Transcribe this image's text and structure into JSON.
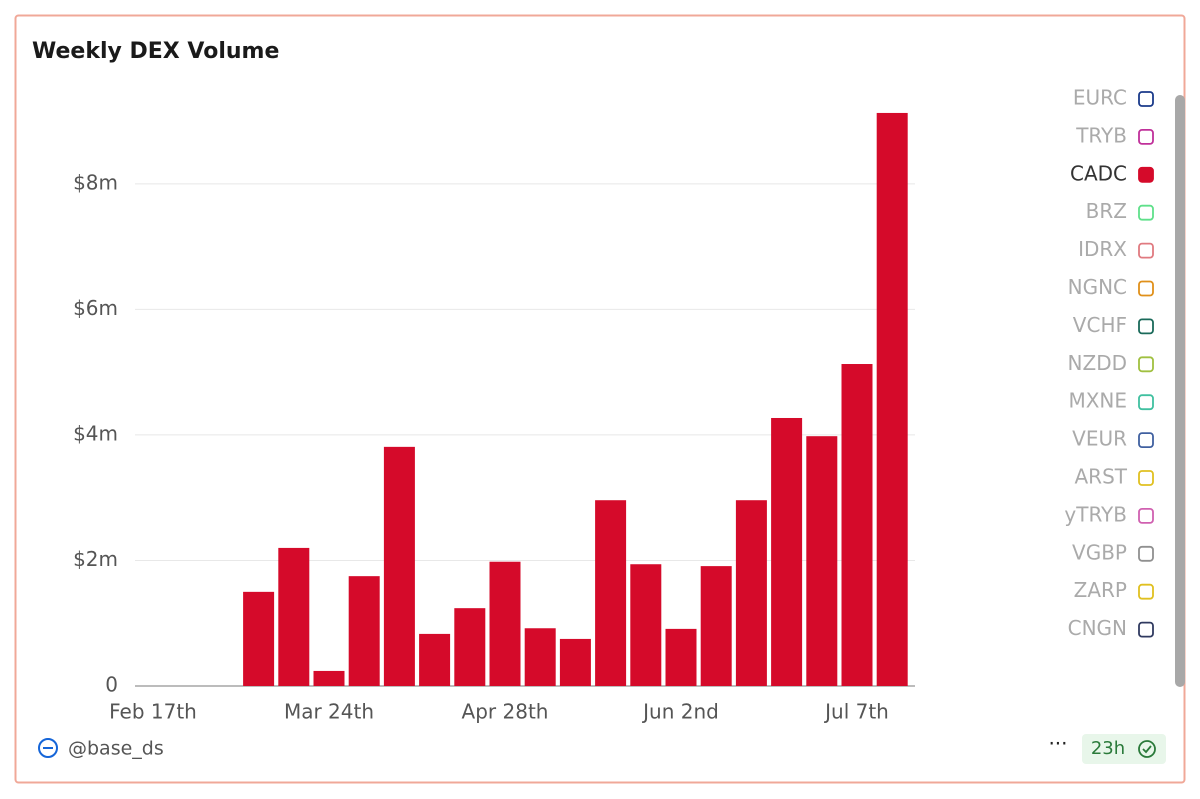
{
  "chart_data": {
    "type": "bar",
    "title": "Weekly DEX Volume",
    "categories": [
      "Feb 17th",
      null,
      null,
      null,
      null,
      "Mar 24th",
      null,
      null,
      null,
      null,
      "Apr 28th",
      null,
      null,
      null,
      null,
      "Jun 2nd",
      null,
      null,
      null,
      null,
      "Jul 7th",
      null
    ],
    "series": [
      {
        "name": "EURC",
        "color": "#1a3a8a",
        "visible": false
      },
      {
        "name": "TRYB",
        "color": "#c0309a",
        "visible": false
      },
      {
        "name": "CADC",
        "color": "#d50a2a",
        "visible": true,
        "values": [
          0,
          0,
          0,
          1500000,
          2200000,
          240000,
          1750000,
          3810000,
          830000,
          1240000,
          1980000,
          920000,
          750000,
          2960000,
          1940000,
          910000,
          1910000,
          2960000,
          4270000,
          3980000,
          5130000,
          9130000
        ]
      },
      {
        "name": "BRZ",
        "color": "#5fe08a",
        "visible": false
      },
      {
        "name": "IDRX",
        "color": "#e07a80",
        "visible": false
      },
      {
        "name": "NGNC",
        "color": "#e0901a",
        "visible": false
      },
      {
        "name": "VCHF",
        "color": "#1a6a5a",
        "visible": false
      },
      {
        "name": "NZDD",
        "color": "#a0c040",
        "visible": false
      },
      {
        "name": "MXNE",
        "color": "#40c0a0",
        "visible": false
      },
      {
        "name": "VEUR",
        "color": "#4060a0",
        "visible": false
      },
      {
        "name": "ARST",
        "color": "#e0c020",
        "visible": false
      },
      {
        "name": "yTRYB",
        "color": "#d060b0",
        "visible": false
      },
      {
        "name": "VGBP",
        "color": "#909090",
        "visible": false
      },
      {
        "name": "ZARP",
        "color": "#e0c020",
        "visible": false
      },
      {
        "name": "CNGN",
        "color": "#303a60",
        "visible": false
      }
    ],
    "ylim": [
      0,
      9400000
    ],
    "yticks": [
      0,
      {
        "value": 2000000,
        "label": "$2m"
      },
      {
        "value": 4000000,
        "label": "$4m"
      },
      {
        "value": 6000000,
        "label": "$6m"
      },
      {
        "value": 8000000,
        "label": "$8m"
      }
    ],
    "grid": true,
    "legend": "right",
    "author": "@base_ds",
    "refresh": "23h"
  }
}
